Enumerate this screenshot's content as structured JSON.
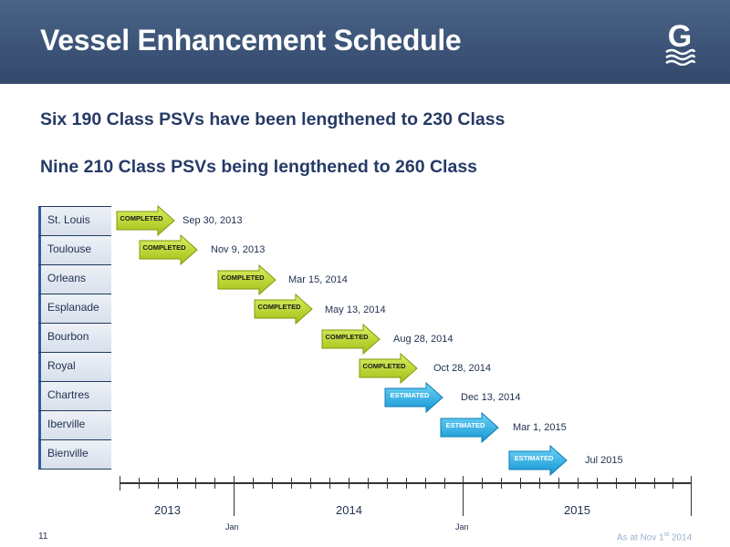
{
  "header": {
    "title": "Vessel Enhancement Schedule",
    "logo_letter": "G",
    "background": "#3c5478"
  },
  "subtitles": [
    "Six 190 Class PSVs have been lengthened to 230 Class",
    "Nine 210 Class PSVs being lengthened to 260 Class"
  ],
  "status_labels": {
    "completed": "COMPLETED",
    "estimated": "ESTIMATED"
  },
  "status_colors": {
    "completed": "#b5d21c",
    "estimated": "#1fa9e0"
  },
  "vessels": [
    {
      "name": "St. Louis",
      "status": "completed",
      "date": "Sep 30, 2013"
    },
    {
      "name": "Toulouse",
      "status": "completed",
      "date": "Nov 9, 2013"
    },
    {
      "name": "Orleans",
      "status": "completed",
      "date": "Mar 15, 2014"
    },
    {
      "name": "Esplanade",
      "status": "completed",
      "date": "May 13, 2014"
    },
    {
      "name": "Bourbon",
      "status": "completed",
      "date": "Aug 28, 2014"
    },
    {
      "name": "Royal",
      "status": "completed",
      "date": "Oct 28,  2014"
    },
    {
      "name": "Chartres",
      "status": "estimated",
      "date": "Dec 13, 2014"
    },
    {
      "name": "Iberville",
      "status": "estimated",
      "date": "Mar 1, 2015"
    },
    {
      "name": "Bienville",
      "status": "estimated",
      "date": "Jul 2015"
    }
  ],
  "timeline": {
    "years": [
      "2013",
      "2014",
      "2015"
    ],
    "jan_label": "Jan"
  },
  "footer": {
    "page_number": "11",
    "as_at_prefix": "As at Nov 1",
    "as_at_sup": "st",
    "as_at_suffix": " 2014"
  }
}
